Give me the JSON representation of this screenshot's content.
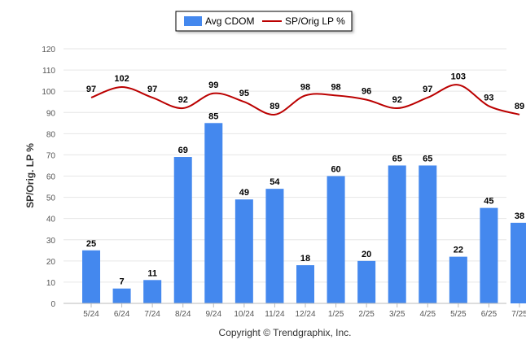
{
  "chart_data": {
    "type": "bar",
    "categories": [
      "5/24",
      "6/24",
      "7/24",
      "8/24",
      "9/24",
      "10/24",
      "11/24",
      "12/24",
      "1/25",
      "2/25",
      "3/25",
      "4/25",
      "5/25",
      "6/25",
      "7/25"
    ],
    "series": [
      {
        "name": "Avg CDOM",
        "type": "bar",
        "color": "#4488ee",
        "values": [
          25,
          7,
          11,
          69,
          85,
          49,
          54,
          18,
          60,
          20,
          65,
          65,
          22,
          45,
          38
        ]
      },
      {
        "name": "SP/Orig LP %",
        "type": "line",
        "color": "#bb0000",
        "values": [
          97,
          102,
          97,
          92,
          99,
          95,
          89,
          98,
          98,
          96,
          92,
          97,
          103,
          93,
          89
        ]
      }
    ],
    "ylabel": "SP/Orig. LP %",
    "ylim": [
      0,
      120
    ],
    "yticks": [
      0,
      10,
      20,
      30,
      40,
      50,
      60,
      70,
      80,
      90,
      100,
      110,
      120
    ],
    "grid": true,
    "legend": "top-center"
  },
  "footer": "Copyright © Trendgraphix, Inc."
}
